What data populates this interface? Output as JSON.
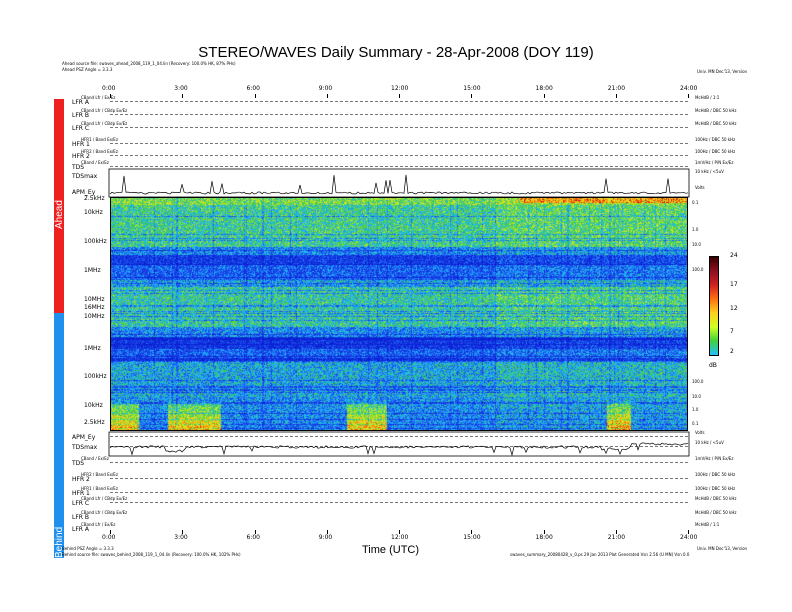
{
  "title": "STEREO/WAVES Daily Summary - 28-Apr-2008 (DOY 119)",
  "header_left": {
    "line1": "Ahead source file: swaves_ahead_2008_119_1_04.lin (Recovery: 100.0% HK, 87% PHs)",
    "line2": "Ahead PSZ Angle = 3.3.3"
  },
  "header_right": "Univ. MN Dec'13, Version",
  "footer_left": {
    "line1": "Behind PSZ Angle = 3.3.3",
    "line2": "Behind source file: swaves_behind_2008_119_1_04.lin (Recovery: 100.0% HK, 102% PHs)"
  },
  "footer_right": {
    "line1": "Univ. MN Dec'13, Version",
    "line2": "swaves_summary_20080428_v_0.ps 29 Jan 2013 Plot Generated Vsn 2.56 (U MN) Vsn 0.0"
  },
  "time_ticks": [
    "0:00",
    "3:00",
    "6:00",
    "9:00",
    "12:00",
    "15:00",
    "18:00",
    "21:00",
    "24:00"
  ],
  "xlabel": "Time (UTC)",
  "side_labels": {
    "ahead": "Ahead",
    "behind": "Behind"
  },
  "ahead_rows": [
    {
      "label": "LFR A",
      "sub": "CBand Lfr / Ex/Ez",
      "right": "McHdB / 1:1"
    },
    {
      "label": "LFR B",
      "sub": "CBand Lfr / CBdp Ex/Ez",
      "right": "McHdB / DBC 50 kHz"
    },
    {
      "label": "LFR C",
      "sub": "CBand Lfr / CBdp Ex/Ez",
      "right": "McHdB / DBC 50 kHz"
    },
    {
      "label": "HFR 1",
      "sub": "HFR1 / Band Ex/Ez",
      "right": "100Hz / DBC 50 kHz"
    },
    {
      "label": "HFR 2",
      "sub": "HFR2 / Band Ex/Ez",
      "right": "100Hz / DBC 50 kHz"
    },
    {
      "label": "TDS",
      "sub": "CBand / Ex/Ez",
      "right": "1mV/Hz / P/N Ex/Ez"
    },
    {
      "label": "TDSmax",
      "sub": "",
      "right": "10 kHz / <5uV"
    },
    {
      "label": "APM_Ey",
      "sub": "",
      "right": "Volts"
    }
  ],
  "behind_rows": [
    {
      "label": "APM_Ey",
      "sub": "",
      "right": "Volts"
    },
    {
      "label": "TDSmax",
      "sub": "",
      "right": "10 kHz / <5uV"
    },
    {
      "label": "TDS",
      "sub": "CBand / Ex/Ez",
      "right": "1mV/Hz / P/N Ex/Ez"
    },
    {
      "label": "HFR 2",
      "sub": "HFR2 / Band Ex/Ez",
      "right": "100Hz / DBC 50 kHz"
    },
    {
      "label": "HFR 1",
      "sub": "HFR1 / Band Ex/Ez",
      "right": "100Hz / DBC 50 kHz"
    },
    {
      "label": "LFR C",
      "sub": "CBand Lfr / CBdp Ex/Ez",
      "right": "McHdB / DBC 50 kHz"
    },
    {
      "label": "LFR B",
      "sub": "CBand Lfr / CBdp Ex/Ez",
      "right": "McHdB / DBC 50 kHz"
    },
    {
      "label": "LFR A",
      "sub": "CBand Lfr / Ex/Ez",
      "right": "McHdB / 1:1"
    }
  ],
  "freq_labels_ahead": [
    "2.5kHz",
    "10kHz",
    "100kHz",
    "1MHz",
    "10MHz",
    "16MHz",
    "10MHz"
  ],
  "freq_labels_behind": [
    "1MHz",
    "100kHz",
    "10kHz",
    "2.5kHz"
  ],
  "right_scale_ahead": [
    "0.1",
    "1.0",
    "10.0",
    "100.0"
  ],
  "right_scale_behind": [
    "100.0",
    "10.0",
    "1.0",
    "0.1"
  ],
  "colorbar": {
    "ticks": [
      "24",
      "17",
      "12",
      "7",
      "2"
    ],
    "unit": "dB",
    "colors": [
      "#3a0000",
      "#8a1020",
      "#d02020",
      "#ff7010",
      "#ffd020",
      "#d0ff20",
      "#40d040",
      "#20c0ff"
    ]
  },
  "chart_data": {
    "type": "heatmap",
    "title": "STEREO/WAVES Daily Summary - 28-Apr-2008 (DOY 119)",
    "xlabel": "Time (UTC)",
    "ylabel": "",
    "x_range_hours": [
      0,
      24
    ],
    "x_ticks": [
      "0:00",
      "3:00",
      "6:00",
      "9:00",
      "12:00",
      "15:00",
      "18:00",
      "21:00",
      "24:00"
    ],
    "ahead_freq_ticks": [
      "2.5kHz",
      "10kHz",
      "100kHz",
      "1MHz",
      "10MHz",
      "16MHz",
      "10MHz"
    ],
    "behind_freq_ticks": [
      "1MHz",
      "100kHz",
      "10kHz",
      "2.5kHz"
    ],
    "colorbar_range_db": [
      2,
      24
    ],
    "colorbar_ticks_db": [
      24,
      17,
      12,
      7,
      2
    ],
    "intense_behind_low_freq_intervals_utc_hours": [
      [
        0.0,
        1.2
      ],
      [
        2.4,
        4.6
      ],
      [
        9.8,
        11.5
      ],
      [
        20.6,
        21.6
      ]
    ]
  }
}
